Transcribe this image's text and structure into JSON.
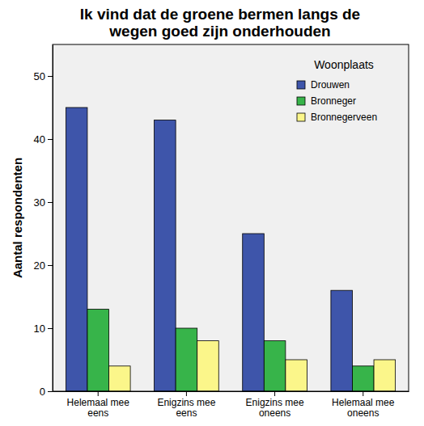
{
  "chart_data": {
    "type": "bar",
    "title": "Ik vind dat de groene bermen langs de wegen goed zijn onderhouden",
    "y_label": "Aantal respondenten",
    "legend_title": "Woonplaats",
    "categories": [
      "Helemaal mee eens",
      "Enigzins mee eens",
      "Enigzins mee oneens",
      "Helemaal mee oneens"
    ],
    "series": [
      {
        "name": "Drouwen",
        "color": "#3e55aa",
        "values": [
          45,
          43,
          25,
          16
        ]
      },
      {
        "name": "Bronneger",
        "color": "#37b44a",
        "values": [
          13,
          10,
          8,
          4
        ]
      },
      {
        "name": "Bronnegerveen",
        "color": "#fbf68a",
        "values": [
          4,
          8,
          5,
          5
        ]
      }
    ],
    "ylim": [
      0,
      55
    ],
    "yticks": [
      0,
      10,
      20,
      30,
      40,
      50
    ],
    "grid": false,
    "legend": "upper right"
  }
}
